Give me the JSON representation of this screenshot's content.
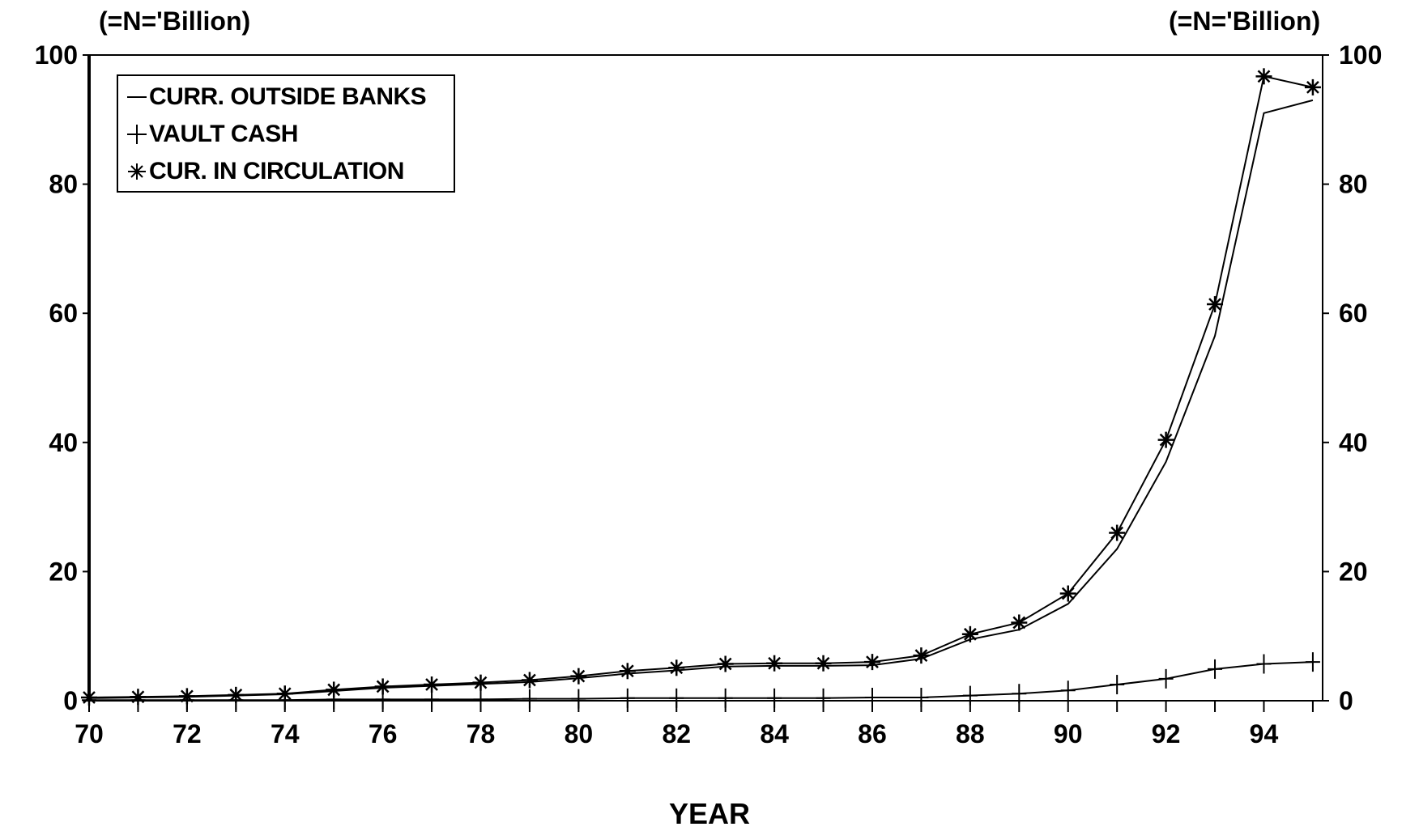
{
  "chart_data": {
    "type": "line",
    "title": "",
    "xlabel": "YEAR",
    "ylabel_left": "(=N='Billion)",
    "ylabel_right": "(=N='Billion)",
    "xlim": [
      70,
      95.2
    ],
    "ylim": [
      0,
      100
    ],
    "x_ticks": [
      70,
      72,
      74,
      76,
      78,
      80,
      82,
      84,
      86,
      88,
      90,
      92,
      94
    ],
    "y_ticks": [
      0,
      20,
      40,
      60,
      80,
      100
    ],
    "legend_position": "top-left",
    "grid": false,
    "x": [
      70,
      71,
      72,
      73,
      74,
      75,
      76,
      77,
      78,
      79,
      80,
      81,
      82,
      83,
      84,
      85,
      86,
      87,
      88,
      89,
      90,
      91,
      92,
      93,
      94,
      95
    ],
    "series": [
      {
        "name": "CURR. OUTSIDE BANKS",
        "marker": "none",
        "values": [
          0.4,
          0.5,
          0.6,
          0.8,
          1.0,
          1.5,
          2.0,
          2.3,
          2.6,
          2.9,
          3.5,
          4.2,
          4.7,
          5.3,
          5.4,
          5.4,
          5.5,
          6.5,
          9.5,
          11.0,
          15.0,
          23.5,
          37.0,
          56.5,
          91.0,
          93.0
        ]
      },
      {
        "name": "VAULT CASH",
        "marker": "plus",
        "values": [
          0.1,
          0.1,
          0.1,
          0.1,
          0.1,
          0.2,
          0.2,
          0.2,
          0.2,
          0.3,
          0.3,
          0.4,
          0.4,
          0.4,
          0.4,
          0.4,
          0.5,
          0.5,
          0.8,
          1.1,
          1.6,
          2.5,
          3.4,
          4.9,
          5.7,
          6.0
        ]
      },
      {
        "name": "CUR. IN CIRCULATION",
        "marker": "star",
        "values": [
          0.5,
          0.6,
          0.7,
          0.9,
          1.1,
          1.7,
          2.2,
          2.5,
          2.8,
          3.2,
          3.8,
          4.6,
          5.1,
          5.7,
          5.8,
          5.8,
          6.0,
          7.0,
          10.3,
          12.1,
          16.6,
          26.0,
          40.4,
          61.4,
          96.7,
          95.0
        ]
      }
    ],
    "colors": {
      "line": "#000000",
      "background": "#ffffff"
    }
  }
}
